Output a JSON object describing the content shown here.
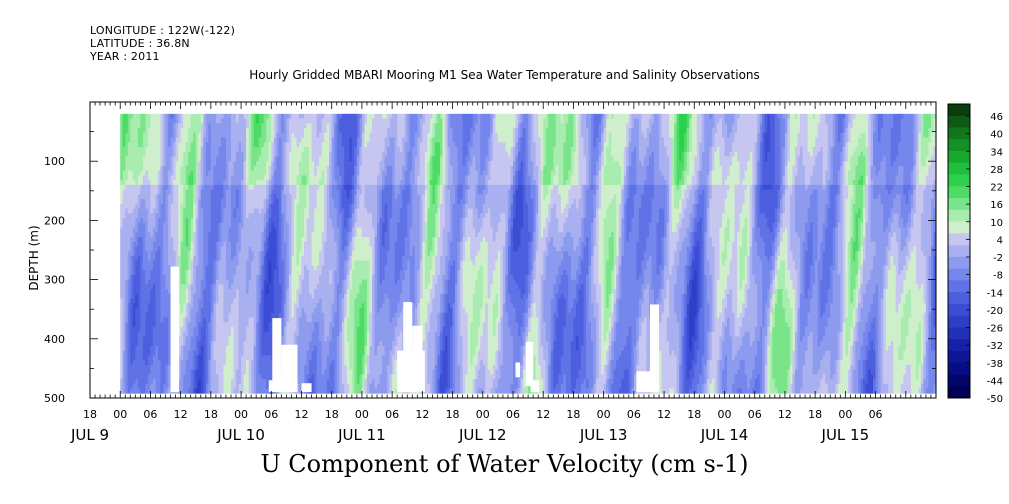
{
  "header": {
    "longitude": "LONGITUDE : 122W(-122)",
    "latitude": "LATITUDE : 36.8N",
    "year": "YEAR : 2011"
  },
  "chart_data": {
    "type": "heatmap",
    "title": "Hourly Gridded MBARI Mooring M1 Sea Water Temperature and Salinity Observations",
    "bottom_title": "U Component of Water Velocity (cm s-1)",
    "ylabel": "DEPTH (m)",
    "ylim": [
      500,
      0
    ],
    "y_ticks": [
      100,
      200,
      300,
      400,
      500
    ],
    "x_range_hours": [
      -6,
      162
    ],
    "x_hour_ticks": [
      {
        "h": -6,
        "label": "18"
      },
      {
        "h": 0,
        "label": "00"
      },
      {
        "h": 6,
        "label": "06"
      },
      {
        "h": 12,
        "label": "12"
      },
      {
        "h": 18,
        "label": "18"
      },
      {
        "h": 24,
        "label": "00"
      },
      {
        "h": 30,
        "label": "06"
      },
      {
        "h": 36,
        "label": "12"
      },
      {
        "h": 42,
        "label": "18"
      },
      {
        "h": 48,
        "label": "00"
      },
      {
        "h": 54,
        "label": "06"
      },
      {
        "h": 60,
        "label": "12"
      },
      {
        "h": 66,
        "label": "18"
      },
      {
        "h": 72,
        "label": "00"
      },
      {
        "h": 78,
        "label": "06"
      },
      {
        "h": 84,
        "label": "12"
      },
      {
        "h": 90,
        "label": "18"
      },
      {
        "h": 96,
        "label": "00"
      },
      {
        "h": 102,
        "label": "06"
      },
      {
        "h": 108,
        "label": "12"
      },
      {
        "h": 114,
        "label": "18"
      },
      {
        "h": 120,
        "label": "00"
      },
      {
        "h": 126,
        "label": "06"
      },
      {
        "h": 132,
        "label": "12"
      },
      {
        "h": 138,
        "label": "18"
      },
      {
        "h": 144,
        "label": "00"
      },
      {
        "h": 150,
        "label": "06"
      }
    ],
    "x_day_labels": [
      {
        "h": -6,
        "label": "JUL  9"
      },
      {
        "h": 24,
        "label": "JUL 10"
      },
      {
        "h": 48,
        "label": "JUL 11"
      },
      {
        "h": 72,
        "label": "JUL 12"
      },
      {
        "h": 96,
        "label": "JUL 13"
      },
      {
        "h": 120,
        "label": "JUL 14"
      },
      {
        "h": 144,
        "label": "JUL 15"
      }
    ],
    "colorbar": {
      "labels": [
        "46",
        "40",
        "34",
        "28",
        "22",
        "16",
        "10",
        "4",
        "-2",
        "-8",
        "-14",
        "-20",
        "-26",
        "-32",
        "-38",
        "-44",
        "-50"
      ],
      "range": [
        -50,
        52
      ],
      "colors": [
        "#0a3d0a",
        "#0e5a14",
        "#11761d",
        "#149126",
        "#18a830",
        "#1fbe3c",
        "#2dd04c",
        "#4cdc64",
        "#7ae48a",
        "#a8ecb0",
        "#cfeecc",
        "#c6c6f0",
        "#a9b0f0",
        "#8d9bef",
        "#7587ec",
        "#5f72e6",
        "#4c5fde",
        "#3b4dd4",
        "#2d3ec7",
        "#2030b8",
        "#1522a8",
        "#0c1696",
        "#060d82",
        "#02066c",
        "#000055"
      ]
    },
    "data_rows_m": [
      20,
      490
    ],
    "blank_gaps": [
      {
        "x0": 10.0,
        "x1": 11.7,
        "y0": 278,
        "y1": 490
      },
      {
        "x0": 30.2,
        "x1": 32.0,
        "y0": 365,
        "y1": 490
      },
      {
        "x0": 29.5,
        "x1": 35.2,
        "y0": 470,
        "y1": 490
      },
      {
        "x0": 32.0,
        "x1": 35.2,
        "y0": 410,
        "y1": 490
      },
      {
        "x0": 36.0,
        "x1": 38.0,
        "y0": 475,
        "y1": 490
      },
      {
        "x0": 55.0,
        "x1": 60.5,
        "y0": 420,
        "y1": 490
      },
      {
        "x0": 56.2,
        "x1": 58.0,
        "y0": 338,
        "y1": 490
      },
      {
        "x0": 58.0,
        "x1": 60.0,
        "y0": 378,
        "y1": 490
      },
      {
        "x0": 78.5,
        "x1": 79.4,
        "y0": 440,
        "y1": 465
      },
      {
        "x0": 80.5,
        "x1": 82.0,
        "y0": 405,
        "y1": 480
      },
      {
        "x0": 81.5,
        "x1": 83.2,
        "y0": 470,
        "y1": 490
      },
      {
        "x0": 102.5,
        "x1": 106.0,
        "y0": 455,
        "y1": 490
      },
      {
        "x0": 105.2,
        "x1": 107.0,
        "y0": 342,
        "y1": 490
      }
    ]
  }
}
